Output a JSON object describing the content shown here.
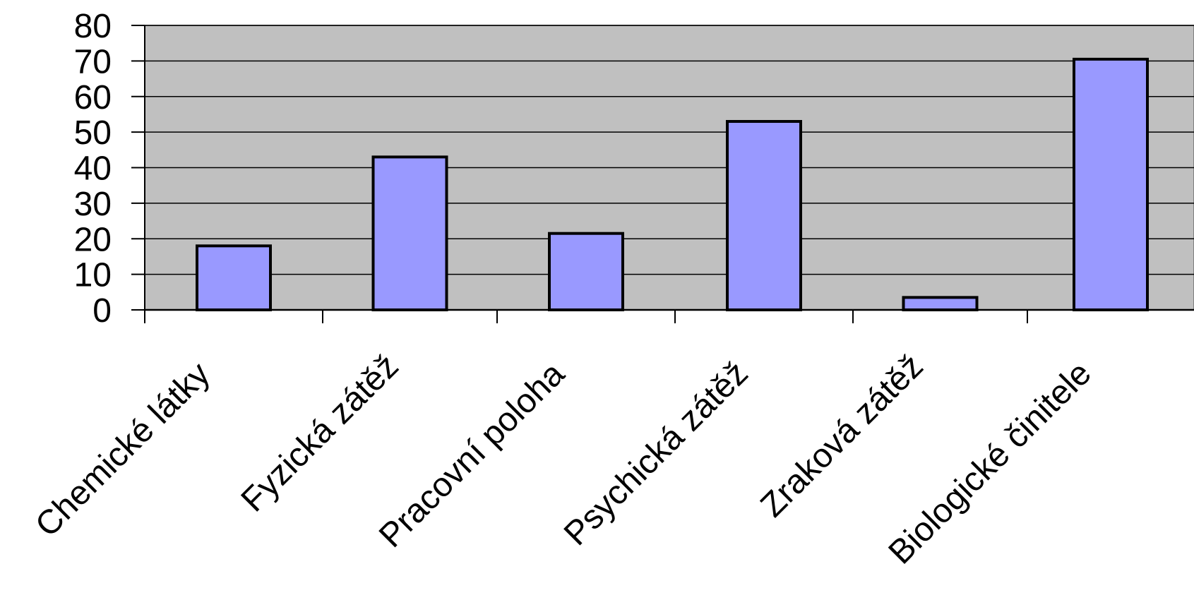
{
  "chart_data": {
    "type": "bar",
    "categories": [
      "Chemické látky",
      "Fyzická zátěž",
      "Pracovní poloha",
      "Psychická zátěž",
      "Zraková zátěž",
      "Biologické činitele"
    ],
    "values": [
      18,
      43,
      21.5,
      53,
      3.5,
      70.5
    ],
    "ylim": [
      0,
      80
    ],
    "yticks": [
      0,
      10,
      20,
      30,
      40,
      50,
      60,
      70,
      80
    ],
    "grid": true,
    "legend": "none",
    "colors": {
      "bar_fill": "#9999FF",
      "bar_stroke": "#000000",
      "plot_background": "#C0C0C0",
      "gridline": "#000000",
      "axis": "#000000"
    }
  }
}
